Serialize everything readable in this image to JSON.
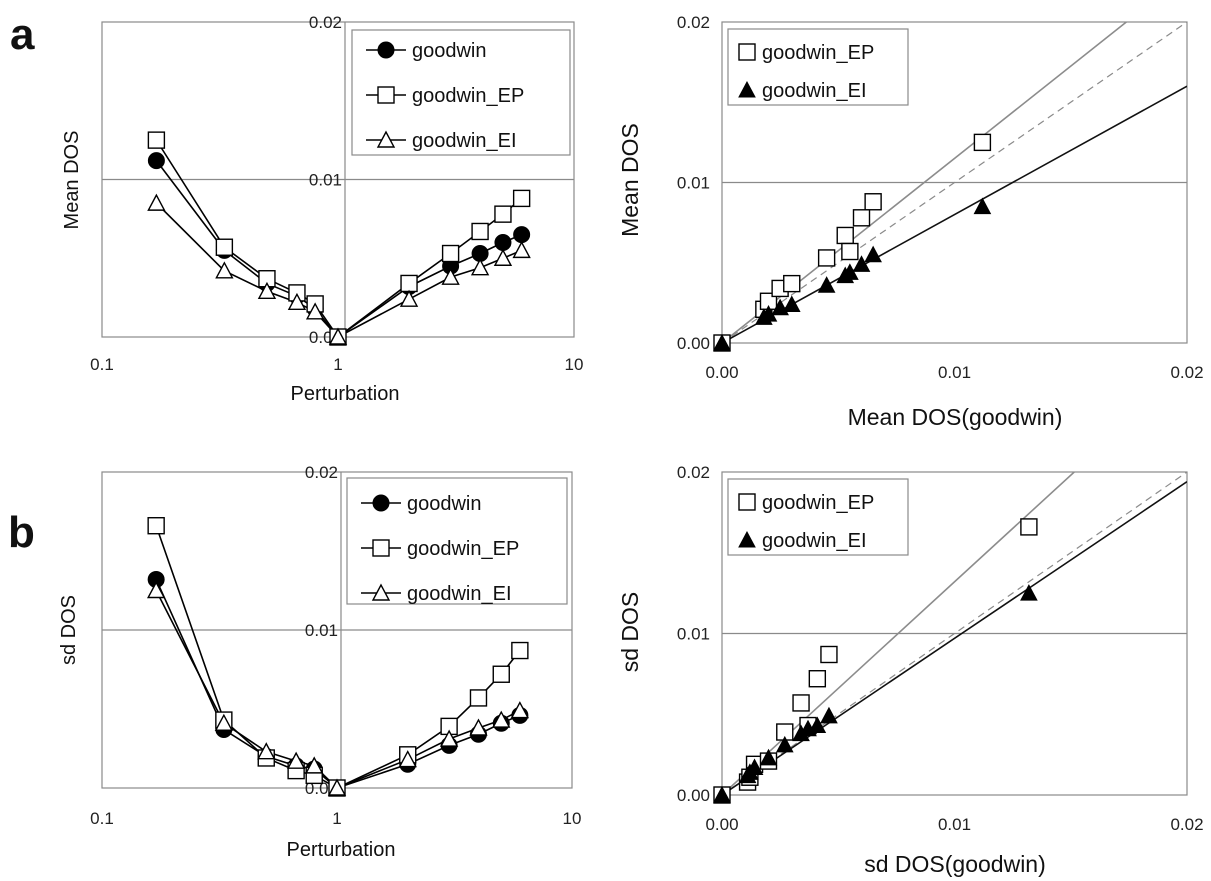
{
  "figure": {
    "panel_a_label": "a",
    "panel_b_label": "b"
  },
  "chart_data": [
    {
      "id": "a-left",
      "type": "line",
      "xscale": "log",
      "xlim": [
        0.1,
        10
      ],
      "ylim": [
        0,
        0.02
      ],
      "xticks": [
        "0.1",
        "1",
        "10"
      ],
      "yticks": [
        "0.00",
        "0.01",
        "0.02"
      ],
      "xlabel": "Perturbation",
      "ylabel": "Mean DOS",
      "grid": "y=0.01 and x=1 reference lines",
      "legend_position": "top-right",
      "x": [
        0.17,
        0.33,
        0.5,
        0.67,
        0.8,
        1,
        2,
        3,
        4,
        5,
        6
      ],
      "series": [
        {
          "name": "goodwin",
          "marker": "filled-circle",
          "values": [
            0.0112,
            0.0055,
            0.0034,
            0.0026,
            0.0018,
            0.0,
            0.0032,
            0.0045,
            0.0053,
            0.006,
            0.0065
          ]
        },
        {
          "name": "goodwin_EP",
          "marker": "open-square",
          "values": [
            0.0125,
            0.0057,
            0.0037,
            0.0028,
            0.0021,
            0.0,
            0.0034,
            0.0053,
            0.0067,
            0.0078,
            0.0088
          ]
        },
        {
          "name": "goodwin_EI",
          "marker": "open-triangle",
          "values": [
            0.0085,
            0.0042,
            0.0029,
            0.0022,
            0.0016,
            0.0,
            0.0024,
            0.0038,
            0.0044,
            0.005,
            0.0055
          ]
        }
      ]
    },
    {
      "id": "a-right",
      "type": "scatter",
      "xlim": [
        0,
        0.02
      ],
      "ylim": [
        0,
        0.02
      ],
      "xticks": [
        "0.00",
        "0.01",
        "0.02"
      ],
      "yticks": [
        "0.00",
        "0.01",
        "0.02"
      ],
      "xlabel": "Mean DOS(goodwin)",
      "ylabel": "Mean DOS",
      "grid": "y=0.01 reference line",
      "legend_position": "top-left",
      "diagonal_slope": 1.0,
      "series": [
        {
          "name": "goodwin_EP",
          "marker": "open-square",
          "fit_slope": 1.15,
          "fit_color": "#8c8c8c",
          "points": [
            [
              0,
              0
            ],
            [
              0.0018,
              0.0021
            ],
            [
              0.002,
              0.0026
            ],
            [
              0.0025,
              0.0034
            ],
            [
              0.003,
              0.0037
            ],
            [
              0.0045,
              0.0053
            ],
            [
              0.0053,
              0.0067
            ],
            [
              0.0055,
              0.0057
            ],
            [
              0.006,
              0.0078
            ],
            [
              0.0065,
              0.0088
            ],
            [
              0.0112,
              0.0125
            ]
          ]
        },
        {
          "name": "goodwin_EI",
          "marker": "filled-triangle",
          "fit_slope": 0.8,
          "fit_color": "#111111",
          "points": [
            [
              0,
              0
            ],
            [
              0.0018,
              0.0016
            ],
            [
              0.002,
              0.0018
            ],
            [
              0.0025,
              0.0022
            ],
            [
              0.003,
              0.0024
            ],
            [
              0.0045,
              0.0036
            ],
            [
              0.0053,
              0.0042
            ],
            [
              0.0055,
              0.0044
            ],
            [
              0.006,
              0.0049
            ],
            [
              0.0065,
              0.0055
            ],
            [
              0.0112,
              0.0085
            ]
          ]
        }
      ]
    },
    {
      "id": "b-left",
      "type": "line",
      "xscale": "log",
      "xlim": [
        0.1,
        10
      ],
      "ylim": [
        0,
        0.02
      ],
      "xticks": [
        "0.1",
        "1",
        "10"
      ],
      "yticks": [
        "0.00",
        "0.01",
        "0.02"
      ],
      "xlabel": "Perturbation",
      "ylabel": "sd DOS",
      "grid": "y=0.01 and x=1 reference lines",
      "legend_position": "top-right",
      "x": [
        0.17,
        0.33,
        0.5,
        0.67,
        0.8,
        1,
        2,
        3,
        4,
        5,
        6
      ],
      "series": [
        {
          "name": "goodwin",
          "marker": "filled-circle",
          "values": [
            0.0132,
            0.0037,
            0.002,
            0.0014,
            0.0012,
            0.0,
            0.0015,
            0.0027,
            0.0034,
            0.0041,
            0.0046
          ]
        },
        {
          "name": "goodwin_EP",
          "marker": "open-square",
          "values": [
            0.0166,
            0.0043,
            0.0019,
            0.0011,
            0.0008,
            0.0,
            0.0021,
            0.0039,
            0.0057,
            0.0072,
            0.0087
          ]
        },
        {
          "name": "goodwin_EI",
          "marker": "open-triangle",
          "values": [
            0.0125,
            0.0041,
            0.0023,
            0.0017,
            0.0014,
            0.0,
            0.0018,
            0.0031,
            0.0038,
            0.0043,
            0.0049
          ]
        }
      ]
    },
    {
      "id": "b-right",
      "type": "scatter",
      "xlim": [
        0,
        0.02
      ],
      "ylim": [
        0,
        0.02
      ],
      "xticks": [
        "0.00",
        "0.01",
        "0.02"
      ],
      "yticks": [
        "0.00",
        "0.01",
        "0.02"
      ],
      "xlabel": "sd DOS(goodwin)",
      "ylabel": "sd DOS",
      "grid": "y=0.01 reference line",
      "legend_position": "top-left",
      "diagonal_slope": 1.0,
      "series": [
        {
          "name": "goodwin_EP",
          "marker": "open-square",
          "fit_slope": 1.32,
          "fit_color": "#8c8c8c",
          "points": [
            [
              0,
              0
            ],
            [
              0.0011,
              0.0008
            ],
            [
              0.0012,
              0.0011
            ],
            [
              0.0014,
              0.0019
            ],
            [
              0.002,
              0.0021
            ],
            [
              0.0027,
              0.0039
            ],
            [
              0.0034,
              0.0057
            ],
            [
              0.0037,
              0.0043
            ],
            [
              0.0041,
              0.0072
            ],
            [
              0.0046,
              0.0087
            ],
            [
              0.0132,
              0.0166
            ]
          ]
        },
        {
          "name": "goodwin_EI",
          "marker": "filled-triangle",
          "fit_slope": 0.97,
          "fit_color": "#111111",
          "points": [
            [
              0,
              0
            ],
            [
              0.0011,
              0.0012
            ],
            [
              0.0012,
              0.0014
            ],
            [
              0.0014,
              0.0017
            ],
            [
              0.002,
              0.0023
            ],
            [
              0.0027,
              0.0031
            ],
            [
              0.0034,
              0.0038
            ],
            [
              0.0037,
              0.0041
            ],
            [
              0.0041,
              0.0043
            ],
            [
              0.0046,
              0.0049
            ],
            [
              0.0132,
              0.0125
            ]
          ]
        }
      ]
    }
  ]
}
